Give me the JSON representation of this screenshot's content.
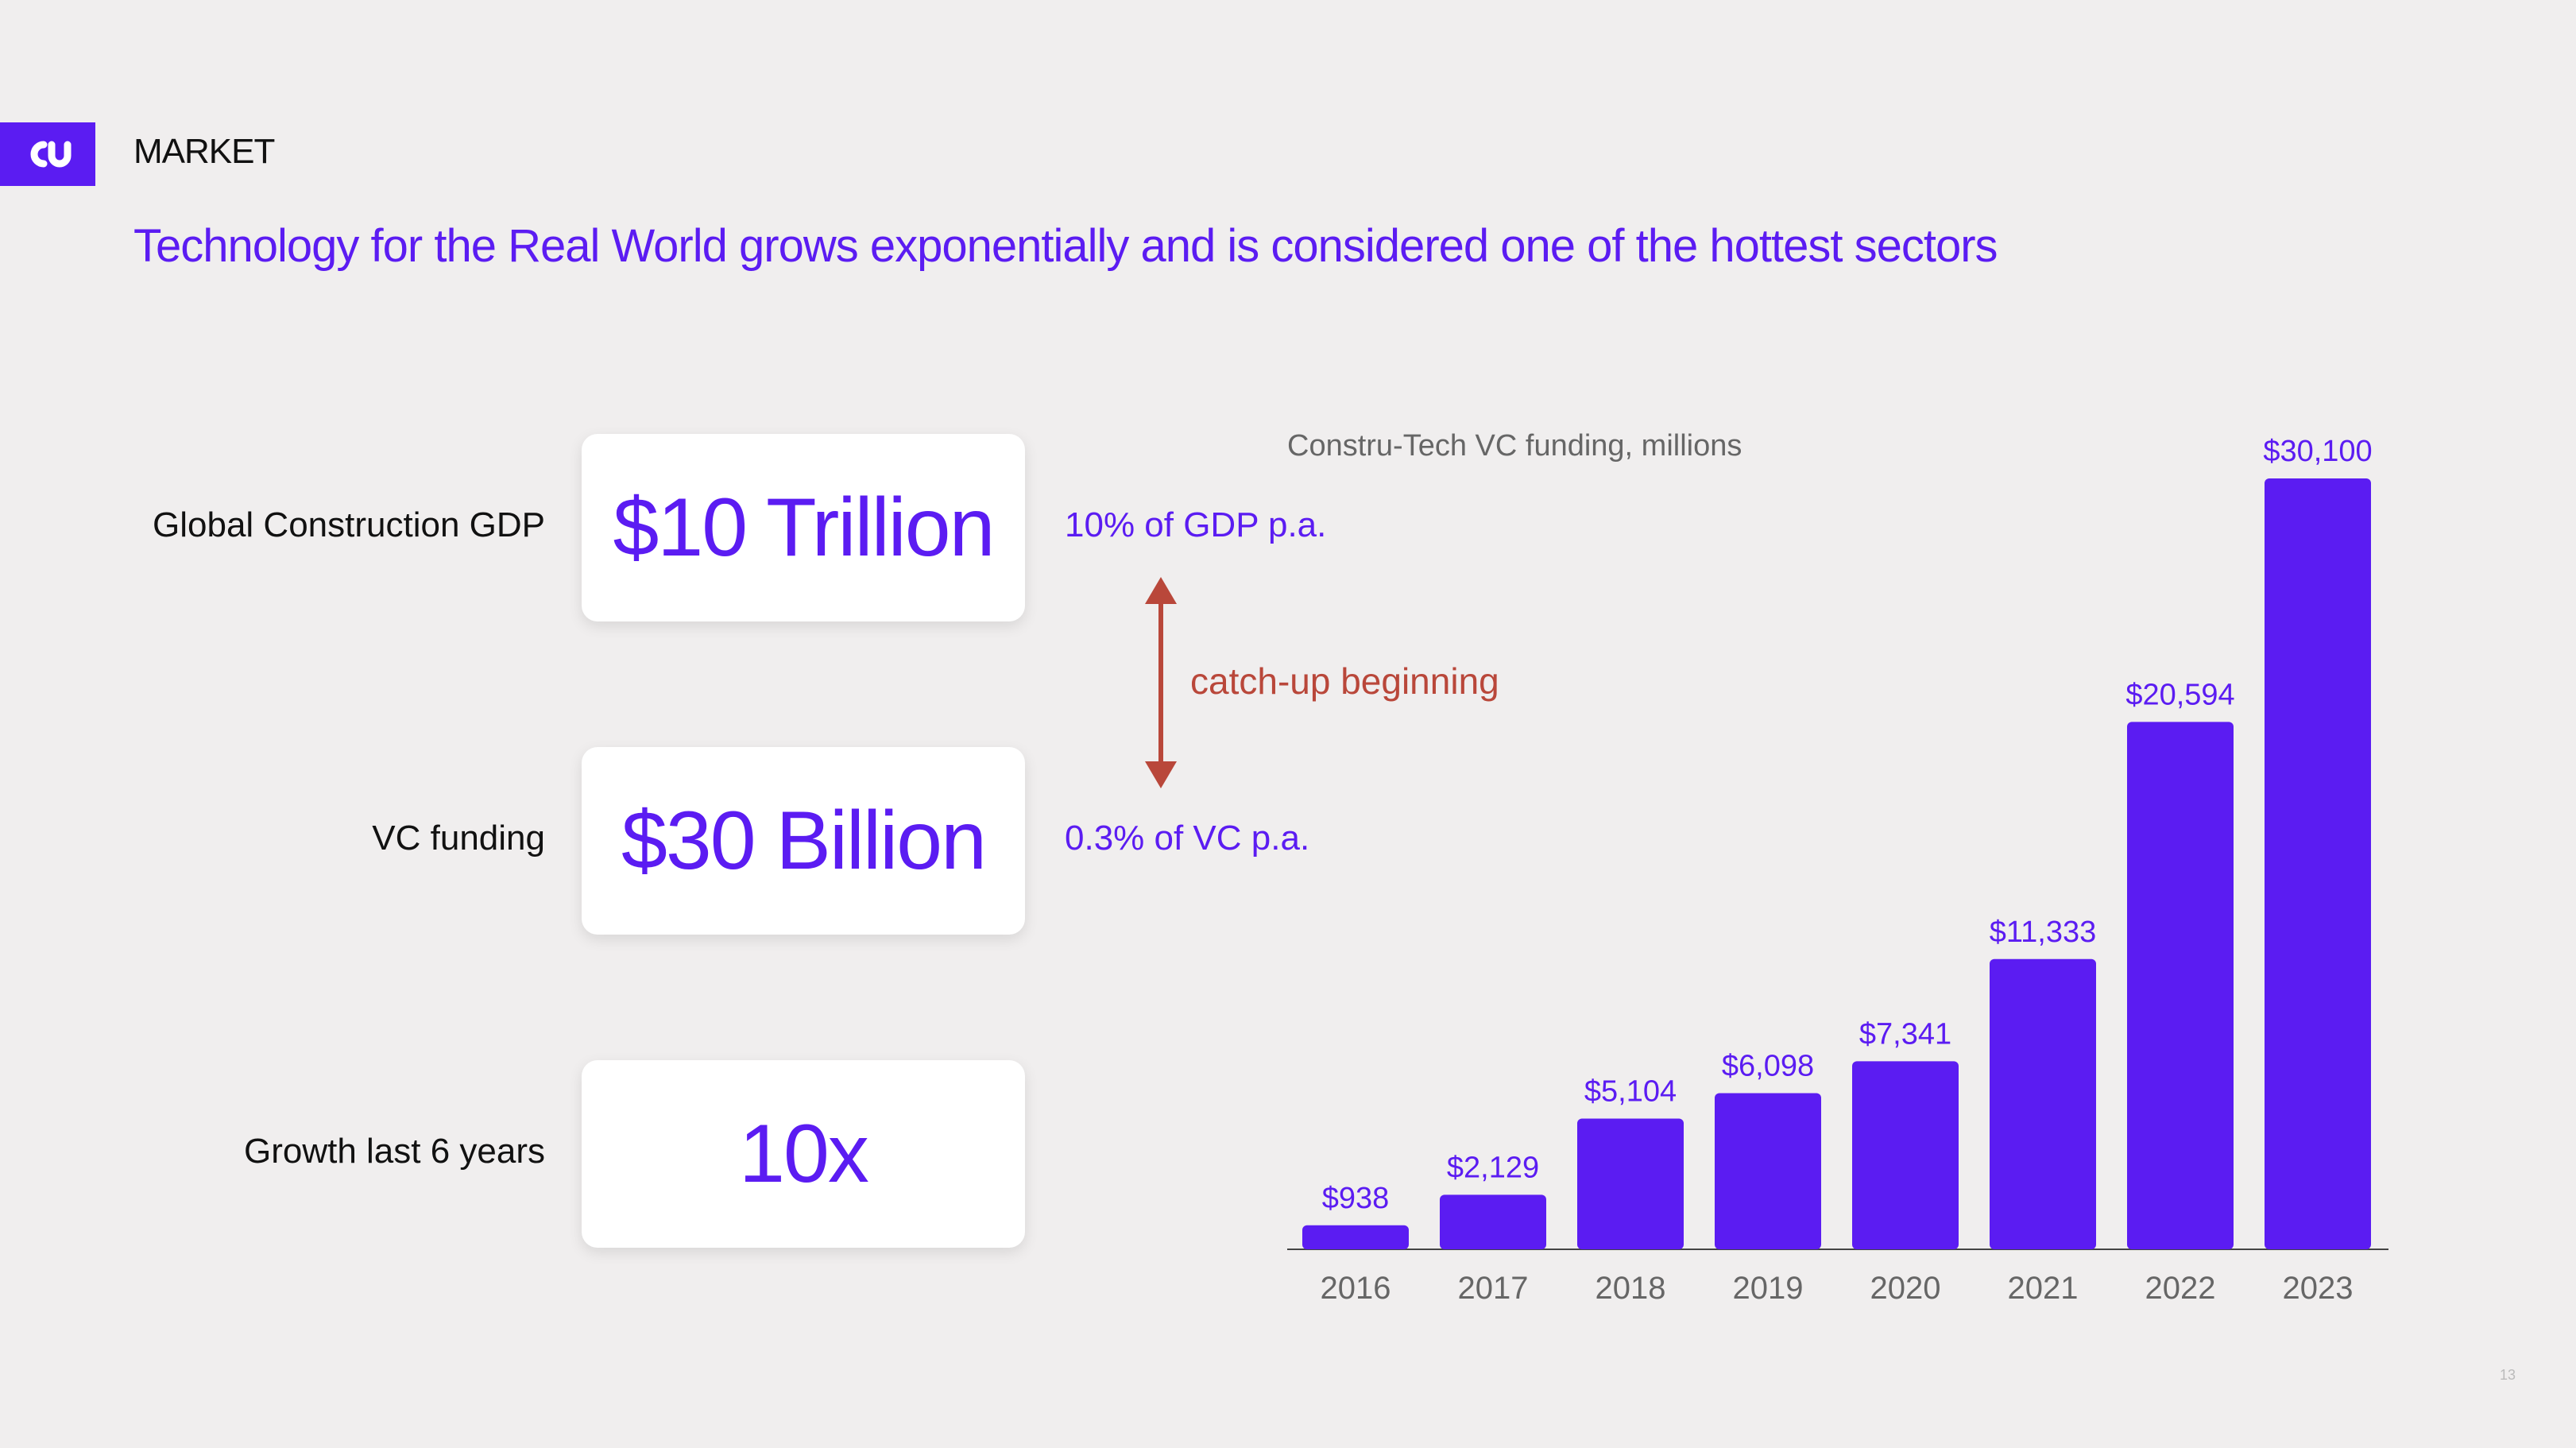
{
  "header": {
    "section": "MARKET",
    "headline": "Technology for the Real World grows exponentially and is considered one of the hottest sectors"
  },
  "stats": [
    {
      "label": "Global Construction GDP",
      "value": "$10 Trillion",
      "note": "10% of GDP p.a."
    },
    {
      "label": "VC funding",
      "value": "$30 Billion",
      "note": "0.3% of VC p.a."
    },
    {
      "label": "Growth last 6 years",
      "value": "10x"
    }
  ],
  "catchup_label": "catch-up beginning",
  "page_number": "13",
  "colors": {
    "accent": "#5b1cf2",
    "catchup": "#b9473a",
    "background": "#f0eeee"
  },
  "chart_data": {
    "type": "bar",
    "title": "Constru-Tech VC funding, millions",
    "categories": [
      "2016",
      "2017",
      "2018",
      "2019",
      "2020",
      "2021",
      "2022",
      "2023"
    ],
    "values": [
      938,
      2129,
      5104,
      6098,
      7341,
      11333,
      20594,
      30100
    ],
    "value_labels": [
      "$938",
      "$2,129",
      "$5,104",
      "$6,098",
      "$7,341",
      "$11,333",
      "$20,594",
      "$30,100"
    ],
    "xlabel": "",
    "ylabel": "",
    "ylim": [
      0,
      30100
    ],
    "grid": false,
    "legend": "none"
  }
}
